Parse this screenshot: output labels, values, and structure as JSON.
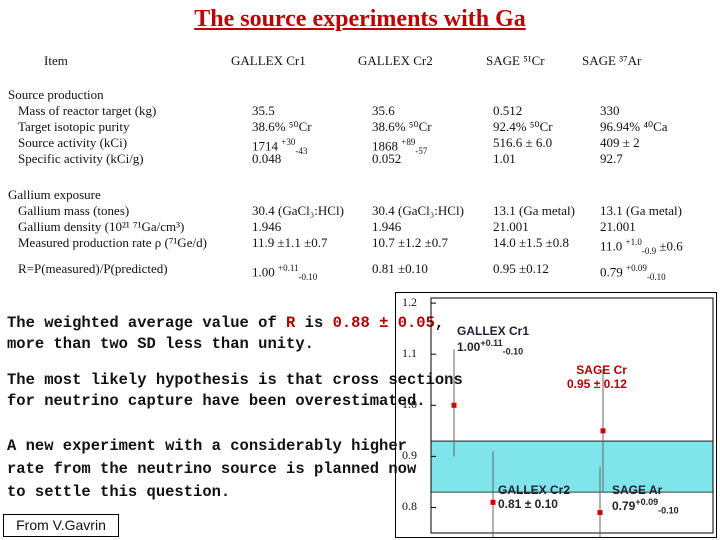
{
  "title": "The source experiments with Ga",
  "headers": {
    "item": "Item",
    "gallex_cr1": "GALLEX Cr1",
    "gallex_cr2": "GALLEX Cr2",
    "sage_cr": "SAGE ⁵¹Cr",
    "sage_ar": "SAGE ³⁷Ar"
  },
  "labels": {
    "source_production": "Source production",
    "reactor_mass": "Mass of reactor target (kg)",
    "isotopic_purity": "Target isotopic purity",
    "source_activity": "Source activity (kCi)",
    "specific_activity": "Specific activity (kCi/g)",
    "gallium_exposure": "Gallium exposure",
    "gallium_mass": "Gallium mass (tones)",
    "gallium_density": "Gallium density (10²¹ ⁷¹Ga/cm³)",
    "production_rate": "Measured production rate ρ (⁷¹Ge/d)",
    "ratio": "R=P(measured)/P(predicted)"
  },
  "columns": {
    "gallex_cr1": {
      "mass": "35.5",
      "purity": "38.6% ⁵⁰Cr",
      "activity_main": "1714",
      "activity_up": "+30",
      "activity_dn": "-43",
      "specific": "0.048",
      "ga_mass": "30.4 (GaCl₃:HCl)",
      "density": "1.946",
      "rate": "11.9 ±1.1 ±0.7",
      "ratio_main": "1.00",
      "ratio_up": "+0.11",
      "ratio_dn": "-0.10"
    },
    "gallex_cr2": {
      "mass": "35.6",
      "purity": "38.6% ⁵⁰Cr",
      "activity_main": "1868",
      "activity_up": "+89",
      "activity_dn": "-57",
      "specific": "0.052",
      "ga_mass": "30.4 (GaCl₃:HCl)",
      "density": "1.946",
      "rate": "10.7 ±1.2 ±0.7",
      "ratio": "0.81 ±0.10"
    },
    "sage_cr": {
      "mass": "0.512",
      "purity": "92.4% ⁵⁰Cr",
      "activity": "516.6 ± 6.0",
      "specific": "1.01",
      "ga_mass": "13.1 (Ga metal)",
      "density": "21.001",
      "rate": "14.0 ±1.5 ±0.8",
      "ratio": "0.95 ±0.12"
    },
    "sage_ar": {
      "mass": "330",
      "purity": "96.94% ⁴⁰Ca",
      "activity": "409 ± 2",
      "specific": "92.7",
      "ga_mass": "13.1 (Ga metal)",
      "density": "21.001",
      "rate_main": "11.0",
      "rate_up": "+1.0",
      "rate_dn": "-0.9",
      "rate_sys": "±0.6",
      "ratio_main": "0.79",
      "ratio_up": "+0.09",
      "ratio_dn": "-0.10"
    }
  },
  "text": {
    "weighted_pre": "The weighted average value of ",
    "weighted_R": "R",
    "weighted_mid": " is ",
    "weighted_val": "0.88 ± 0.05",
    "weighted_post": ",",
    "weighted_line2": "more than two SD less than unity.",
    "hypothesis_line1": "The most likely hypothesis is that cross sections",
    "hypothesis_line2": "for neutrino capture have been overestimated.",
    "new_exp_line1": "A new experiment with a considerably higher",
    "new_exp_line2": "rate from the neutrino source is planned now",
    "new_exp_line3": "to settle this question.",
    "credit": "From V.Gavrin"
  },
  "chart_data": {
    "type": "scatter",
    "y_ticks": [
      "1.2",
      "1.1",
      "1.0",
      "0.9",
      "0.8"
    ],
    "ylim": [
      0.75,
      1.21
    ],
    "band": [
      0.83,
      0.93
    ],
    "band_color": "#7fe5ea",
    "point_color": "#d00000",
    "points": [
      {
        "name": "GALLEX Cr1",
        "value": 1.0,
        "err_up": 0.11,
        "err_dn": 0.1
      },
      {
        "name": "GALLEX Cr2",
        "value": 0.81,
        "err_up": 0.1,
        "err_dn": 0.1
      },
      {
        "name": "SAGE Cr",
        "value": 0.95,
        "err_up": 0.12,
        "err_dn": 0.12
      },
      {
        "name": "SAGE Ar",
        "value": 0.79,
        "err_up": 0.09,
        "err_dn": 0.1
      }
    ],
    "annotations": {
      "cr1_name": "GALLEX Cr1",
      "cr1_main": "1.00",
      "cr1_up": "+0.11",
      "cr1_dn": "-0.10",
      "sagecr_name": "SAGE Cr",
      "sagecr_val": "0.95 ± 0.12",
      "cr2_name": "GALLEX Cr2",
      "cr2_val": "0.81 ± 0.10",
      "ar_name": "SAGE Ar",
      "ar_main": "0.79",
      "ar_up": "+0.09",
      "ar_dn": "-0.10"
    }
  }
}
